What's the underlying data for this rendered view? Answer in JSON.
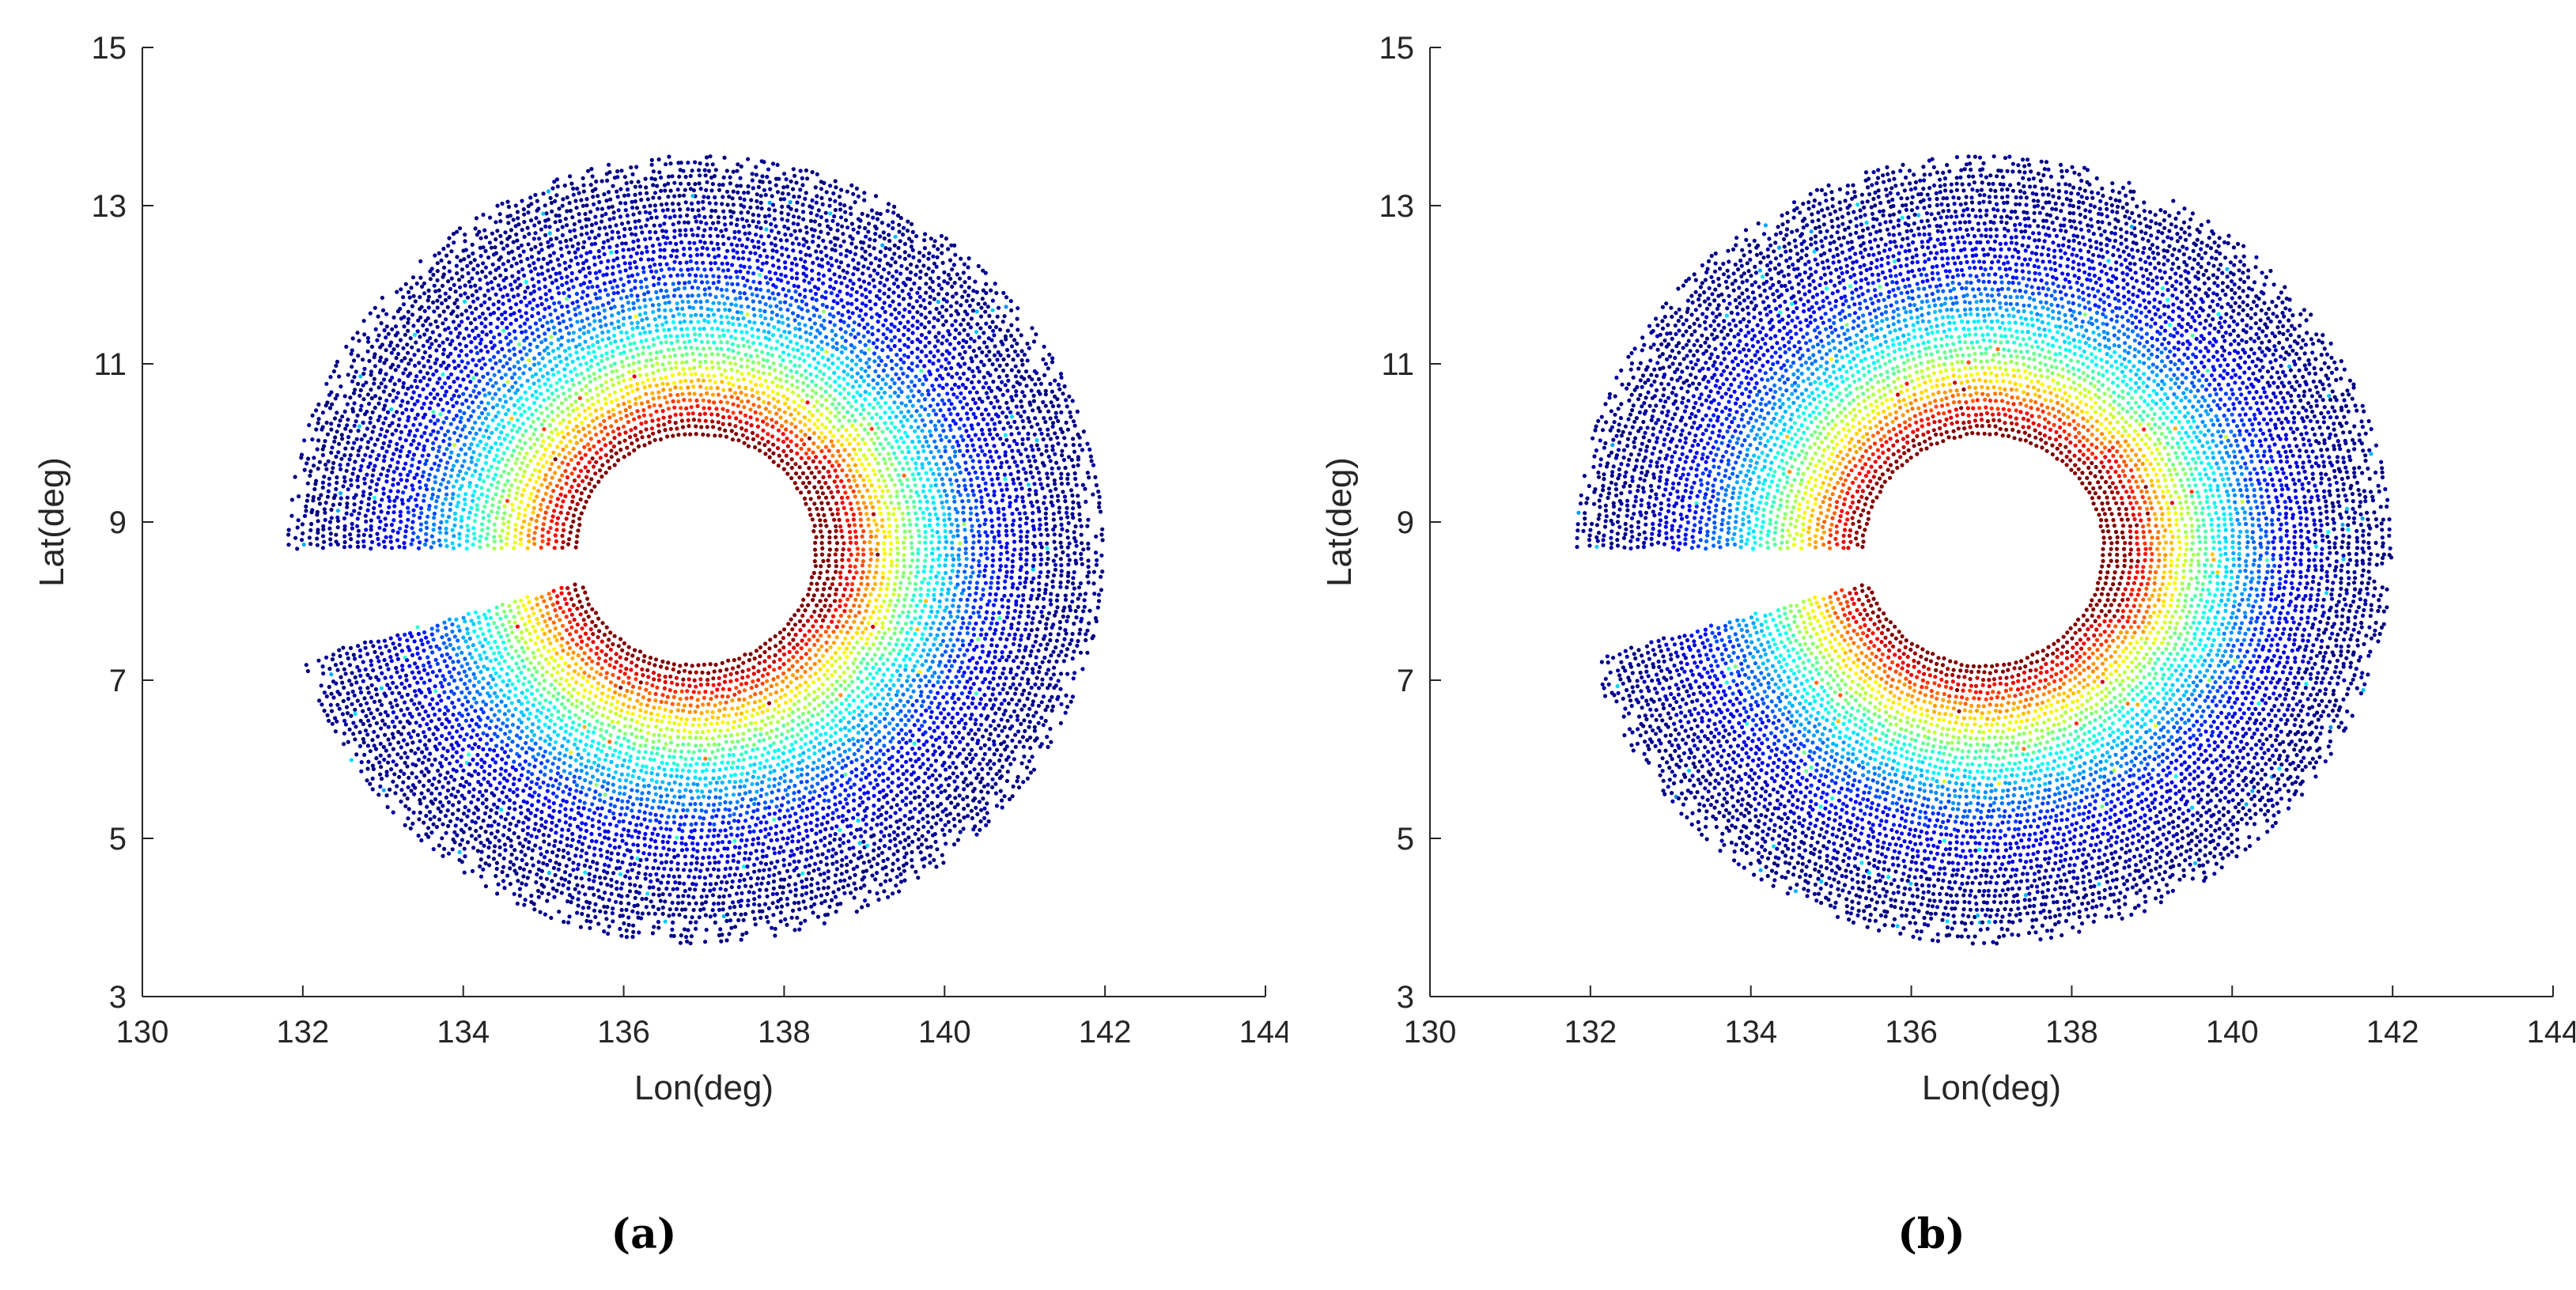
{
  "chart_data": [
    {
      "type": "scatter",
      "caption": "(a)",
      "xlabel": "Lon(deg)",
      "ylabel": "Lat(deg)",
      "xlim": [
        130,
        144
      ],
      "ylim": [
        3,
        15
      ],
      "xticks": [
        130,
        132,
        134,
        136,
        138,
        140,
        142,
        144
      ],
      "yticks": [
        3,
        5,
        7,
        9,
        11,
        13,
        15
      ],
      "grid": false,
      "description_data": {
        "center": [
          136.9,
          8.65
        ],
        "inner_radius": 1.5,
        "outer_radius": 5.1,
        "gap_direction_deg": [
          180,
          196
        ],
        "colormap": "jet"
      }
    },
    {
      "type": "scatter",
      "caption": "(b)",
      "xlabel": "Lon(deg)",
      "ylabel": "Lat(deg)",
      "xlim": [
        130,
        144
      ],
      "ylim": [
        3,
        15
      ],
      "xticks": [
        130,
        132,
        134,
        136,
        138,
        140,
        142,
        144
      ],
      "yticks": [
        3,
        5,
        7,
        9,
        11,
        13,
        15
      ],
      "grid": false,
      "description_data": {
        "center": [
          136.9,
          8.65
        ],
        "inner_radius": 1.5,
        "outer_radius": 5.1,
        "gap_direction_deg": [
          180,
          196
        ],
        "colormap": "jet"
      }
    }
  ]
}
